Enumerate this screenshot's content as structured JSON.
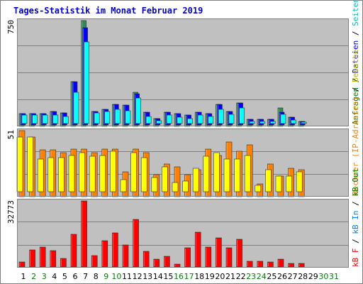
{
  "title": "Tages-Statistik im Monat Februar 2019",
  "colors": {
    "background": "#ffffff",
    "panel": "#c0c0c0",
    "grid": "#808080",
    "anfragen": "#2e8b57",
    "dateien": "#0000ff",
    "seiten": "#00ffff",
    "rechner": "#ff8000",
    "besuche": "#ffff00",
    "kb": "#ff0000",
    "weekday_label": "#000000",
    "weekend_label": "#008000",
    "title": "#0000cc"
  },
  "right_axis_labels": {
    "top": [
      {
        "text": "Anfragen",
        "color": "#008000"
      },
      {
        "text": " / ",
        "color": "#000000"
      },
      {
        "text": "Dateien",
        "color": "#0000ff"
      },
      {
        "text": " / ",
        "color": "#000000"
      },
      {
        "text": "Seiten",
        "color": "#00c0c0"
      }
    ],
    "middle": [
      {
        "text": "Rechner (IP-Adressen)",
        "color": "#ff8000"
      },
      {
        "text": " / ",
        "color": "#000000"
      },
      {
        "text": "Besuche",
        "color": "#c0c000"
      }
    ],
    "bottom": [
      {
        "text": "kB F",
        "color": "#ff0000"
      },
      {
        "text": " / ",
        "color": "#000000"
      },
      {
        "text": "kB In",
        "color": "#0080ff"
      },
      {
        "text": " / ",
        "color": "#000000"
      },
      {
        "text": "kB Out",
        "color": "#008000"
      }
    ]
  },
  "chart_data": [
    {
      "type": "bar",
      "panel": "requests",
      "ymax_label": "750",
      "ylim": [
        0,
        750
      ],
      "categories": [
        "1",
        "2",
        "3",
        "4",
        "5",
        "6",
        "7",
        "8",
        "9",
        "10",
        "11",
        "12",
        "13",
        "14",
        "15",
        "16",
        "17",
        "18",
        "19",
        "20",
        "21",
        "22",
        "23",
        "24",
        "25",
        "26",
        "27",
        "28",
        "29",
        "30",
        "31"
      ],
      "weekend_days": [
        "2",
        "3",
        "9",
        "10",
        "16",
        "17",
        "23",
        "24",
        "30",
        "31"
      ],
      "series": [
        {
          "name": "Anfragen",
          "values": [
            90,
            90,
            90,
            105,
            95,
            315,
            750,
            105,
            120,
            155,
            150,
            240,
            100,
            55,
            100,
            90,
            80,
            100,
            90,
            155,
            105,
            165,
            50,
            50,
            50,
            130,
            65,
            35,
            0,
            0,
            0
          ]
        },
        {
          "name": "Dateien",
          "values": [
            90,
            90,
            90,
            105,
            95,
            315,
            700,
            105,
            120,
            155,
            150,
            230,
            100,
            55,
            100,
            90,
            80,
            100,
            90,
            155,
            105,
            165,
            50,
            50,
            50,
            100,
            65,
            35,
            0,
            0,
            0
          ]
        },
        {
          "name": "Seiten",
          "values": [
            80,
            80,
            80,
            80,
            70,
            240,
            600,
            95,
            105,
            120,
            110,
            200,
            70,
            40,
            80,
            65,
            55,
            80,
            70,
            120,
            85,
            130,
            35,
            35,
            35,
            85,
            45,
            25,
            0,
            0,
            0
          ]
        }
      ]
    },
    {
      "type": "bar",
      "panel": "visitors",
      "ymax_label": "51",
      "ylim": [
        0,
        51
      ],
      "categories": [
        "1",
        "2",
        "3",
        "4",
        "5",
        "6",
        "7",
        "8",
        "9",
        "10",
        "11",
        "12",
        "13",
        "14",
        "15",
        "16",
        "17",
        "18",
        "19",
        "20",
        "21",
        "22",
        "23",
        "24",
        "25",
        "26",
        "27",
        "28",
        "29",
        "30",
        "31"
      ],
      "series": [
        {
          "name": "Rechner (IP-Adressen)",
          "values": [
            51,
            46,
            36,
            36,
            34,
            37,
            37,
            34,
            37,
            37,
            19,
            37,
            34,
            17,
            25,
            23,
            17,
            21,
            37,
            32,
            42,
            35,
            40,
            10,
            25,
            16,
            22,
            21,
            0,
            0,
            0
          ]
        },
        {
          "name": "Besuche",
          "values": [
            46,
            46,
            29,
            30,
            30,
            32,
            34,
            31,
            32,
            35,
            13,
            34,
            30,
            15,
            23,
            11,
            12,
            22,
            31,
            34,
            29,
            29,
            32,
            9,
            21,
            16,
            16,
            19,
            0,
            0,
            0
          ]
        }
      ]
    },
    {
      "type": "bar",
      "panel": "traffic",
      "ymax_label": "32773",
      "ylim": [
        0,
        32773
      ],
      "categories": [
        "1",
        "2",
        "3",
        "4",
        "5",
        "6",
        "7",
        "8",
        "9",
        "10",
        "11",
        "12",
        "13",
        "14",
        "15",
        "16",
        "17",
        "18",
        "19",
        "20",
        "21",
        "22",
        "23",
        "24",
        "25",
        "26",
        "27",
        "28",
        "29",
        "30",
        "31"
      ],
      "series": [
        {
          "name": "kB F",
          "values": [
            2800,
            8600,
            10100,
            8500,
            4500,
            16500,
            32773,
            5900,
            13300,
            17000,
            11300,
            23800,
            8100,
            4200,
            5700,
            1800,
            9700,
            17300,
            10200,
            14600,
            9700,
            14100,
            3200,
            3200,
            2700,
            4200,
            2200,
            2200,
            0,
            0,
            0
          ]
        }
      ]
    }
  ]
}
